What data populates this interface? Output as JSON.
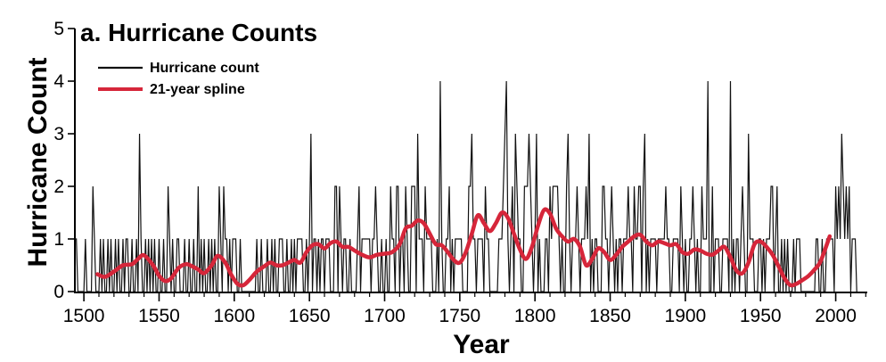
{
  "chart_data": {
    "type": "line",
    "title": "a. Hurricane Counts",
    "xlabel": "Year",
    "ylabel": "Hurricane Count",
    "xlim": [
      1494,
      2021
    ],
    "ylim": [
      0,
      5
    ],
    "x_ticks": [
      1500,
      1550,
      1600,
      1650,
      1700,
      1750,
      1800,
      1850,
      1900,
      1950,
      2000
    ],
    "x_tick_labels": [
      "1500",
      "1550",
      "1600",
      "1650",
      "1700",
      "1750",
      "1800",
      "1850",
      "1900",
      "1950",
      "2000"
    ],
    "y_ticks": [
      0,
      1,
      2,
      3,
      4,
      5
    ],
    "y_tick_labels": [
      "0",
      "1",
      "2",
      "3",
      "4",
      "5"
    ],
    "legend": {
      "position": "top-left"
    },
    "series": [
      {
        "name": "Hurricane count",
        "color": "#111111",
        "kind": "annual",
        "x_start": 1494,
        "values": [
          1,
          1,
          0,
          0,
          0,
          0,
          0,
          1,
          0,
          0,
          0,
          0,
          2,
          1,
          0,
          0,
          0,
          1,
          0,
          1,
          0,
          0,
          1,
          0,
          1,
          0,
          0,
          1,
          0,
          1,
          0,
          0,
          1,
          0,
          1,
          1,
          0,
          0,
          1,
          0,
          0,
          1,
          0,
          3,
          1,
          0,
          0,
          1,
          0,
          1,
          0,
          1,
          0,
          1,
          0,
          0,
          1,
          0,
          0,
          1,
          0,
          0,
          2,
          1,
          0,
          1,
          0,
          0,
          1,
          1,
          0,
          0,
          0,
          1,
          0,
          0,
          1,
          0,
          0,
          1,
          0,
          0,
          2,
          0,
          1,
          0,
          1,
          0,
          0,
          1,
          0,
          1,
          0,
          1,
          0,
          0,
          2,
          1,
          0,
          2,
          1,
          1,
          0,
          1,
          0,
          1,
          1,
          1,
          0,
          0,
          1,
          0,
          0,
          0,
          0,
          0,
          0,
          0,
          0,
          0,
          0,
          1,
          0,
          0,
          1,
          0,
          0,
          0,
          1,
          0,
          0,
          1,
          0,
          1,
          0,
          0,
          1,
          1,
          1,
          0,
          0,
          1,
          0,
          0,
          1,
          0,
          1,
          0,
          1,
          1,
          1,
          1,
          0,
          0,
          1,
          0,
          1,
          3,
          0,
          1,
          1,
          0,
          1,
          0,
          1,
          1,
          0,
          1,
          1,
          1,
          0,
          0,
          0,
          2,
          2,
          0,
          2,
          1,
          0,
          1,
          1,
          0,
          0,
          1,
          0,
          0,
          0,
          0,
          1,
          2,
          0,
          1,
          1,
          1,
          1,
          1,
          1,
          0,
          1,
          1,
          2,
          1,
          0,
          0,
          1,
          0,
          0,
          1,
          0,
          0,
          2,
          1,
          1,
          0,
          2,
          2,
          0,
          1,
          1,
          0,
          2,
          1,
          0,
          0,
          2,
          2,
          2,
          0,
          3,
          1,
          1,
          1,
          0,
          2,
          1,
          1,
          1,
          1,
          0,
          0,
          0,
          1,
          0,
          4,
          1,
          0,
          0,
          1,
          1,
          2,
          0,
          1,
          0,
          1,
          1,
          1,
          1,
          1,
          0,
          0,
          0,
          0,
          2,
          2,
          3,
          1,
          1,
          0,
          1,
          1,
          1,
          1,
          0,
          2,
          1,
          1,
          0,
          0,
          0,
          0,
          0,
          0,
          1,
          1,
          1,
          2,
          3,
          4,
          1,
          0,
          1,
          2,
          0,
          3,
          2,
          1,
          1,
          0,
          0,
          2,
          2,
          2,
          3,
          2,
          1,
          0,
          1,
          3,
          0,
          1,
          0,
          0,
          0,
          1,
          1,
          0,
          2,
          1,
          2,
          2,
          2,
          2,
          1,
          0,
          1,
          0,
          0,
          2,
          3,
          1,
          0,
          1,
          1,
          1,
          2,
          1,
          0,
          1,
          1,
          1,
          2,
          1,
          3,
          0,
          1,
          0,
          1,
          1,
          0,
          0,
          0,
          2,
          2,
          1,
          1,
          0,
          1,
          2,
          1,
          0,
          1,
          0,
          1,
          1,
          0,
          1,
          1,
          1,
          2,
          1,
          1,
          0,
          2,
          1,
          1,
          2,
          2,
          0,
          2,
          3,
          0,
          1,
          0,
          1,
          1,
          1,
          1,
          0,
          1,
          1,
          1,
          1,
          1,
          2,
          1,
          1,
          0,
          0,
          1,
          1,
          1,
          1,
          0,
          2,
          1,
          0,
          1,
          0,
          0,
          1,
          1,
          2,
          1,
          0,
          1,
          0,
          0,
          2,
          1,
          1,
          1,
          4,
          0,
          0,
          2,
          0,
          1,
          1,
          1,
          0,
          0,
          1,
          1,
          1,
          1,
          0,
          4,
          0,
          1,
          0,
          1,
          1,
          0,
          1,
          2,
          1,
          0,
          0,
          3,
          1,
          1,
          1,
          0,
          0,
          0,
          1,
          1,
          0,
          1,
          0,
          1,
          1,
          1,
          2,
          2,
          0,
          1,
          2,
          0,
          0,
          1,
          0,
          1,
          0,
          1,
          0,
          0,
          0,
          1,
          0,
          1,
          1,
          1,
          0,
          0,
          0,
          0,
          0,
          0,
          0,
          0,
          0,
          0,
          1,
          1,
          0,
          0,
          1,
          0,
          0,
          1,
          1,
          1,
          1,
          1,
          0,
          2,
          1,
          2,
          1,
          3,
          2,
          1,
          2,
          1,
          2,
          0,
          1,
          1,
          1,
          0
        ]
      },
      {
        "name": "21-year spline",
        "color": "#d6263a",
        "kind": "smooth",
        "x": [
          1509,
          1514,
          1520,
          1526,
          1532,
          1536,
          1540,
          1546,
          1550,
          1554,
          1558,
          1563,
          1568,
          1572,
          1576,
          1580,
          1585,
          1589,
          1594,
          1598,
          1602,
          1606,
          1610,
          1615,
          1620,
          1624,
          1628,
          1632,
          1636,
          1640,
          1644,
          1648,
          1652,
          1656,
          1660,
          1664,
          1668,
          1672,
          1676,
          1680,
          1685,
          1690,
          1695,
          1700,
          1705,
          1710,
          1714,
          1718,
          1722,
          1726,
          1730,
          1734,
          1738,
          1742,
          1746,
          1750,
          1754,
          1758,
          1762,
          1766,
          1770,
          1774,
          1778,
          1782,
          1786,
          1790,
          1794,
          1798,
          1802,
          1806,
          1810,
          1814,
          1818,
          1822,
          1826,
          1830,
          1834,
          1838,
          1842,
          1846,
          1850,
          1854,
          1858,
          1862,
          1866,
          1870,
          1874,
          1878,
          1882,
          1886,
          1890,
          1894,
          1898,
          1902,
          1906,
          1910,
          1914,
          1918,
          1922,
          1926,
          1930,
          1934,
          1938,
          1942,
          1946,
          1950,
          1954,
          1958,
          1962,
          1966,
          1970,
          1974,
          1978,
          1982,
          1986,
          1990,
          1996
        ],
        "y": [
          0.33,
          0.28,
          0.38,
          0.5,
          0.52,
          0.62,
          0.69,
          0.5,
          0.3,
          0.2,
          0.25,
          0.45,
          0.52,
          0.48,
          0.42,
          0.35,
          0.5,
          0.68,
          0.55,
          0.32,
          0.15,
          0.12,
          0.22,
          0.38,
          0.48,
          0.55,
          0.5,
          0.5,
          0.55,
          0.6,
          0.55,
          0.75,
          0.88,
          0.9,
          0.82,
          0.92,
          0.95,
          0.85,
          0.85,
          0.78,
          0.7,
          0.65,
          0.7,
          0.72,
          0.75,
          0.9,
          1.2,
          1.25,
          1.35,
          1.3,
          1.1,
          0.9,
          0.88,
          0.75,
          0.6,
          0.55,
          0.75,
          1.1,
          1.45,
          1.3,
          1.15,
          1.3,
          1.5,
          1.4,
          1.1,
          0.8,
          0.62,
          0.85,
          1.25,
          1.55,
          1.48,
          1.2,
          1.05,
          0.95,
          1.0,
          0.85,
          0.5,
          0.62,
          0.82,
          0.75,
          0.6,
          0.7,
          0.85,
          0.95,
          1.05,
          1.08,
          0.95,
          0.88,
          0.95,
          0.92,
          0.88,
          0.9,
          0.75,
          0.72,
          0.8,
          0.78,
          0.72,
          0.7,
          0.78,
          0.85,
          0.65,
          0.4,
          0.35,
          0.55,
          0.9,
          0.95,
          0.85,
          0.7,
          0.48,
          0.25,
          0.12,
          0.15,
          0.22,
          0.3,
          0.42,
          0.58,
          1.05
        ]
      }
    ]
  }
}
